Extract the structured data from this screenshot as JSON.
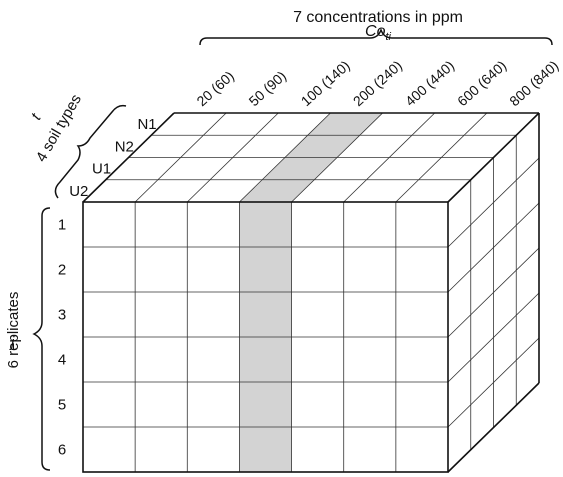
{
  "concentration": {
    "symbol_base": "Co",
    "symbol_sub": "ti",
    "title": "7 concentrations in ppm",
    "values": [
      "20 (60)",
      "50 (90)",
      "100 (140)",
      "200 (240)",
      "400 (440)",
      "600 (640)",
      "800 (840)"
    ],
    "highlighted_index": 3
  },
  "soil": {
    "symbol": "t",
    "title": "4 soil types",
    "values": [
      "N1",
      "N2",
      "U1",
      "U2"
    ]
  },
  "replicates": {
    "symbol": "j",
    "title": "6 replicates",
    "values": [
      "1",
      "2",
      "3",
      "4",
      "5",
      "6"
    ]
  },
  "colors": {
    "highlight": "#d3d3d3",
    "line": "#333333"
  }
}
